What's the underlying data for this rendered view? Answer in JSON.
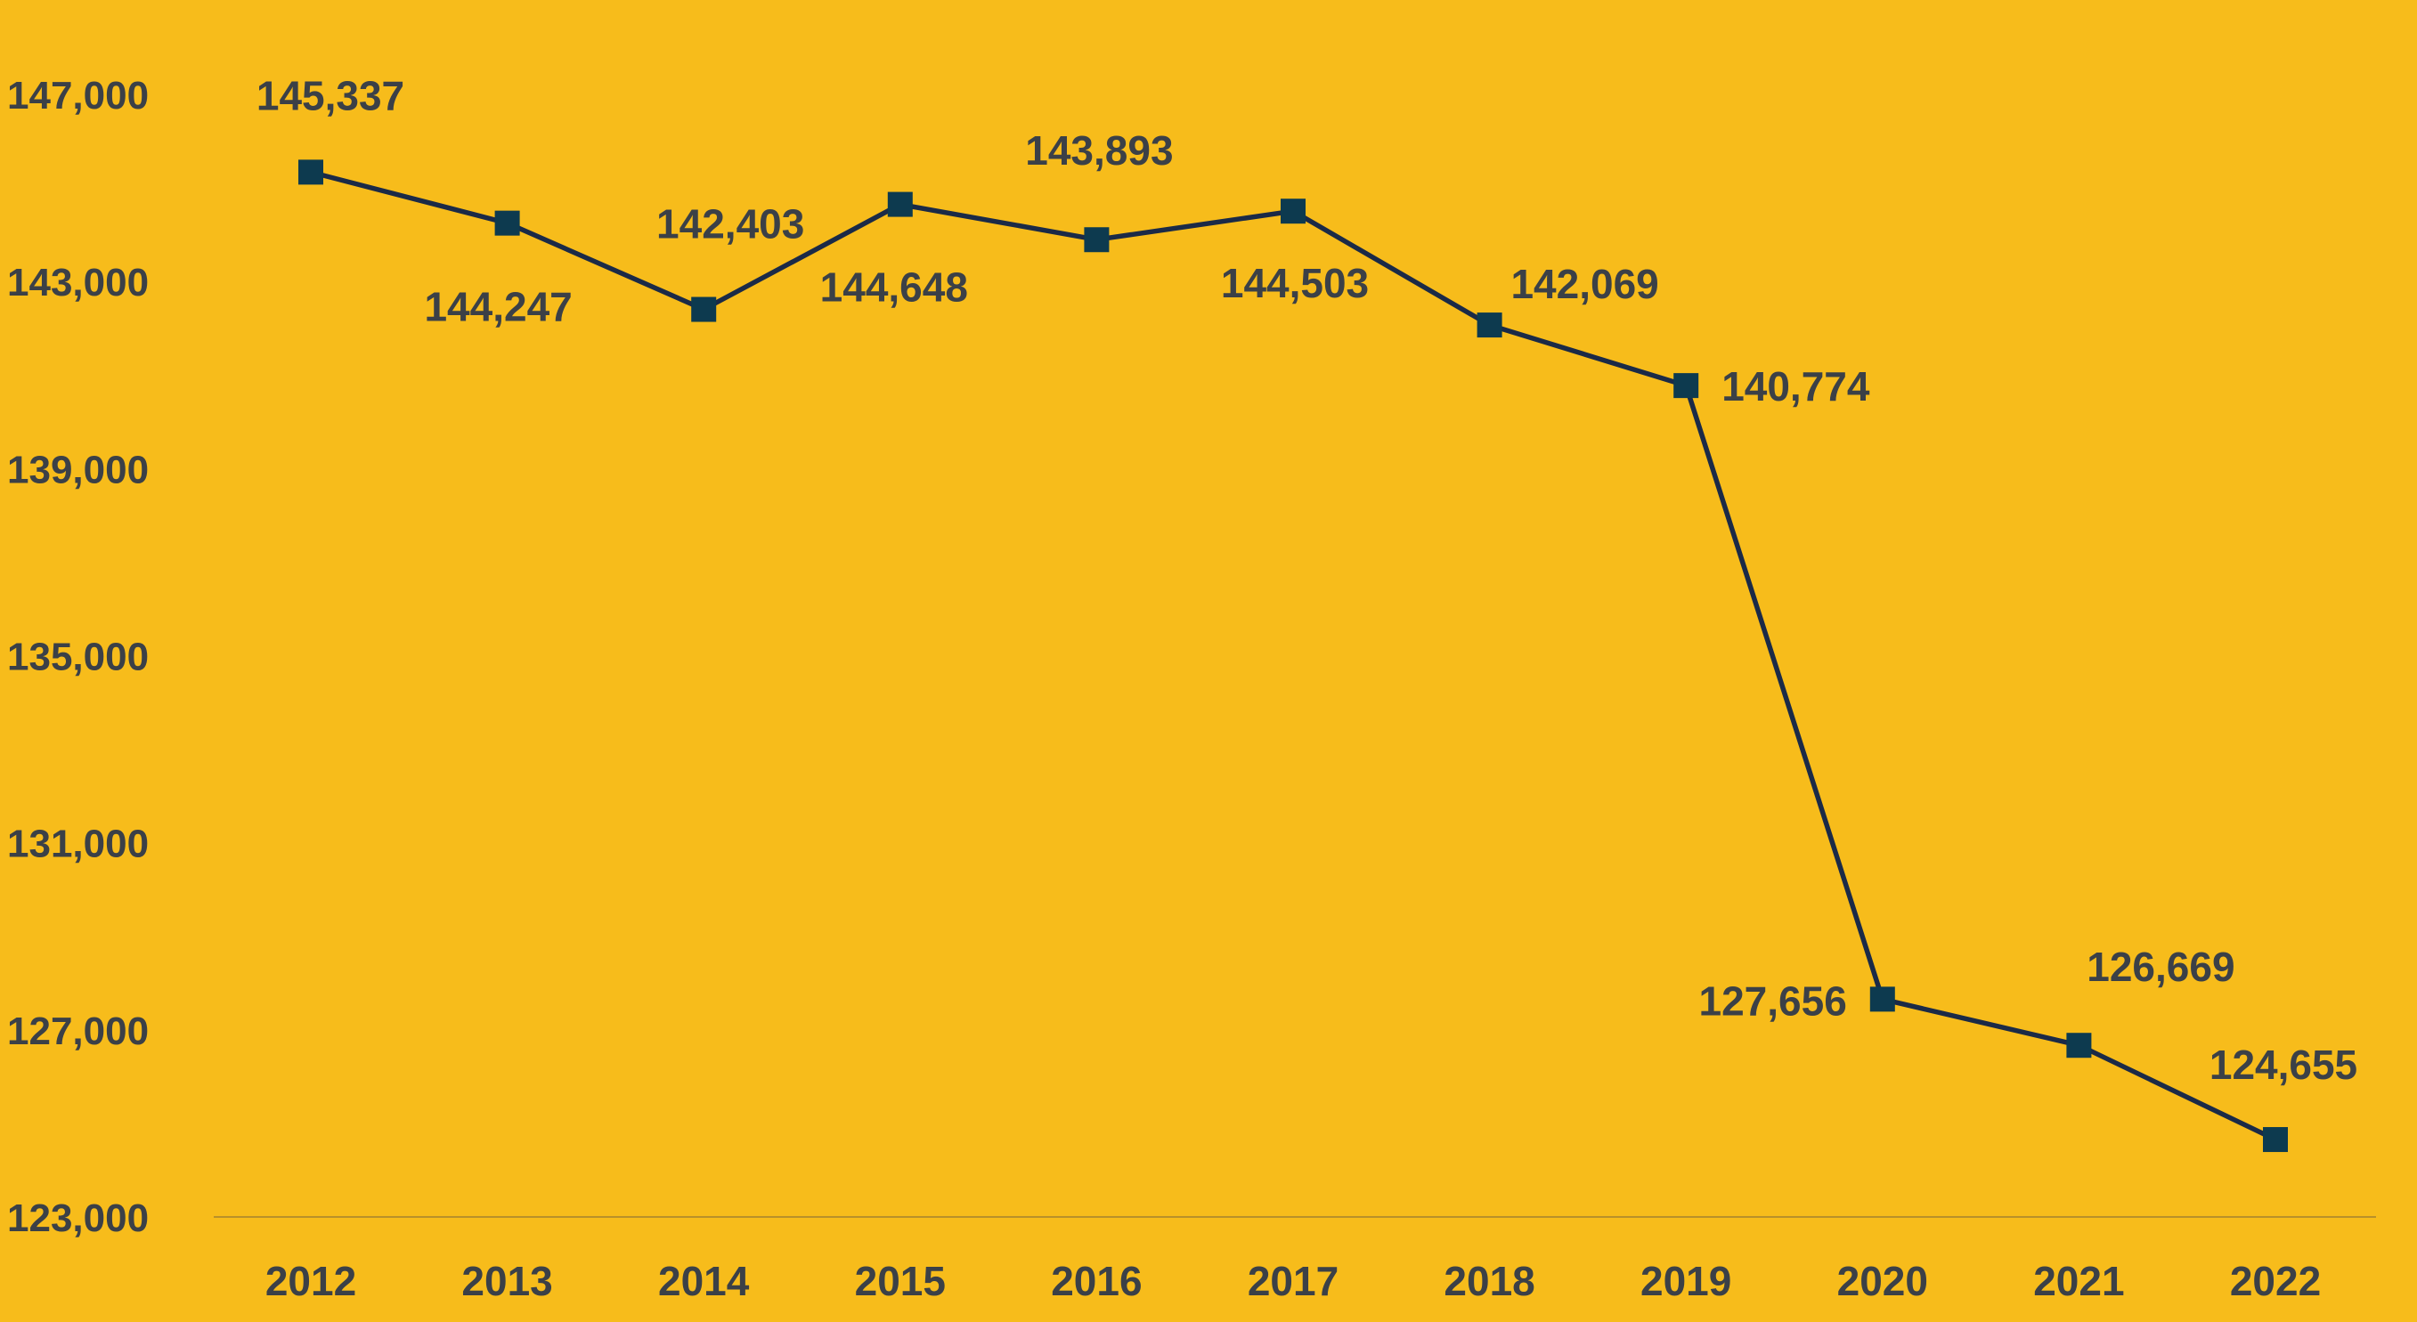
{
  "chart_data": {
    "type": "line",
    "title": "",
    "xlabel": "",
    "ylabel": "",
    "categories": [
      "2012",
      "2013",
      "2014",
      "2015",
      "2016",
      "2017",
      "2018",
      "2019",
      "2020",
      "2021",
      "2022"
    ],
    "series": [
      {
        "values": [
          145337,
          144247,
          142403,
          144648,
          143893,
          144503,
          142069,
          140774,
          127656,
          126669,
          124655
        ],
        "labels": [
          "145,337",
          "144,247",
          "142,403",
          "144,648",
          "143,893",
          "144,503",
          "142,069",
          "140,774",
          "127,656",
          "126,669",
          "124,655"
        ],
        "marker": "square",
        "line_color": "#1B2A47",
        "marker_color": "#0D3A4F"
      }
    ],
    "ylim": [
      123000,
      147000
    ],
    "yticks": [
      147000,
      143000,
      139000,
      135000,
      131000,
      127000,
      123000
    ],
    "ytick_labels": [
      "147,000",
      "143,000",
      "139,000",
      "135,000",
      "131,000",
      "127,000",
      "123,000"
    ],
    "grid": false,
    "legend": "none",
    "background_color": "#F7BC1B",
    "text_color": "#3B4047",
    "axis_color": "#B8902A"
  }
}
